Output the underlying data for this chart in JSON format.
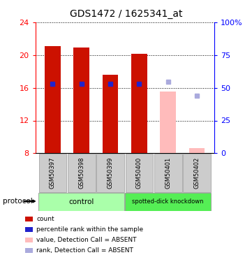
{
  "title": "GDS1472 / 1625341_at",
  "samples": [
    "GSM50397",
    "GSM50398",
    "GSM50399",
    "GSM50400",
    "GSM50401",
    "GSM50402"
  ],
  "bar_values": [
    21.05,
    20.9,
    17.6,
    20.15,
    15.55,
    8.6
  ],
  "bar_colors": [
    "#cc1100",
    "#cc1100",
    "#cc1100",
    "#cc1100",
    "#ffbbbb",
    "#ffbbbb"
  ],
  "rank_values": [
    16.5,
    16.5,
    16.5,
    16.5,
    null,
    null
  ],
  "rank_color": "#2222cc",
  "absent_rank_values": [
    null,
    null,
    null,
    null,
    16.7,
    15.0
  ],
  "absent_rank_color": "#aaaadd",
  "ylim_left": [
    8,
    24
  ],
  "ylim_right": [
    0,
    100
  ],
  "yticks_left": [
    8,
    12,
    16,
    20,
    24
  ],
  "yticks_right": [
    0,
    25,
    50,
    75,
    100
  ],
  "bar_bottom": 8,
  "ctrl_color": "#aaffaa",
  "kd_color": "#55ee55",
  "legend_items": [
    {
      "label": "count",
      "color": "#cc1100"
    },
    {
      "label": "percentile rank within the sample",
      "color": "#2222cc"
    },
    {
      "label": "value, Detection Call = ABSENT",
      "color": "#ffbbbb"
    },
    {
      "label": "rank, Detection Call = ABSENT",
      "color": "#aaaadd"
    }
  ],
  "bar_width": 0.55
}
